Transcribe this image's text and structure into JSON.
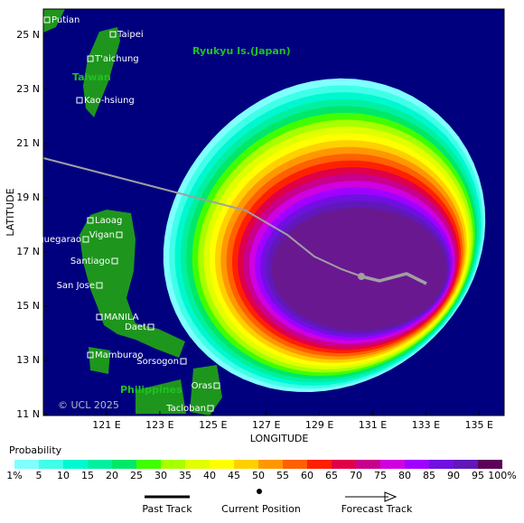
{
  "map": {
    "axes": {
      "y_label": "LATITUDE",
      "x_label": "LONGITUDE",
      "y_ticks": [
        "25 N",
        "23 N",
        "21 N",
        "19 N",
        "17 N",
        "15 N",
        "13 N",
        "11 N"
      ],
      "x_ticks": [
        "121 E",
        "123 E",
        "125 E",
        "127 E",
        "129 E",
        "131 E",
        "133 E",
        "135 E"
      ]
    },
    "places": [
      "Putian",
      "Taipei",
      "T'aichung",
      "Kao-hsiung",
      "Laoag",
      "Tuguegarao",
      "Vigan",
      "Santiago",
      "San Jose",
      "MANILA",
      "Daet",
      "Mamburao",
      "Sorsogon",
      "Oras",
      "Tacloban"
    ],
    "regions": [
      "Ryukyu Is.(Japan)",
      "Taiwan",
      "Philippines"
    ],
    "copyright": "© UCL 2025",
    "legend": {
      "title": "Probability",
      "levels": [
        "1%",
        "5",
        "10",
        "15",
        "20",
        "25",
        "30",
        "35",
        "40",
        "45",
        "50",
        "55",
        "60",
        "65",
        "70",
        "75",
        "80",
        "85",
        "90",
        "95",
        "100%"
      ],
      "colors": [
        "#80ffff",
        "#40ffe8",
        "#00f8d0",
        "#00f0a0",
        "#00e868",
        "#40ff00",
        "#a8ff00",
        "#e0ff00",
        "#ffff00",
        "#ffd000",
        "#ff9800",
        "#ff6000",
        "#ff2000",
        "#e00048",
        "#c8008c",
        "#d000e0",
        "#a000ff",
        "#7010e0",
        "#6018b8",
        "#6a1890",
        "#5c0058"
      ]
    },
    "key": [
      "Past Track",
      "Current Position",
      "Forecast Track"
    ]
  }
}
